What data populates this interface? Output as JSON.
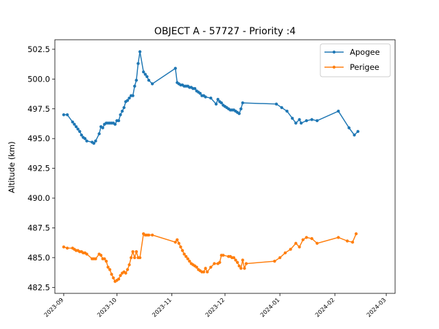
{
  "chart_data": {
    "type": "line",
    "title": "OBJECT A - 57727 - Priority :4",
    "xlabel": "",
    "ylabel": "Altitude (km)",
    "xlim": [
      "2023-08-27",
      "2024-03-06"
    ],
    "ylim": [
      482.0,
      503.3
    ],
    "grid": false,
    "legend_position": "top-right",
    "x_ticks": [
      "2023-09",
      "2023-10",
      "2023-11",
      "2023-12",
      "2024-01",
      "2024-02",
      "2024-03"
    ],
    "y_ticks": [
      "482.5",
      "485.0",
      "487.5",
      "490.0",
      "492.5",
      "495.0",
      "497.5",
      "500.0",
      "502.5"
    ],
    "series": [
      {
        "name": "Apogee",
        "color": "#1f77b4",
        "points": [
          [
            "2023-09-01",
            497.0
          ],
          [
            "2023-09-03",
            497.0
          ],
          [
            "2023-09-06",
            496.4
          ],
          [
            "2023-09-07",
            496.2
          ],
          [
            "2023-09-08",
            496.0
          ],
          [
            "2023-09-09",
            495.8
          ],
          [
            "2023-09-10",
            495.6
          ],
          [
            "2023-09-11",
            495.3
          ],
          [
            "2023-09-12",
            495.1
          ],
          [
            "2023-09-13",
            495.0
          ],
          [
            "2023-09-14",
            494.8
          ],
          [
            "2023-09-17",
            494.7
          ],
          [
            "2023-09-18",
            494.6
          ],
          [
            "2023-09-19",
            494.8
          ],
          [
            "2023-09-21",
            495.4
          ],
          [
            "2023-09-22",
            496.0
          ],
          [
            "2023-09-23",
            495.9
          ],
          [
            "2023-09-24",
            496.2
          ],
          [
            "2023-09-25",
            496.3
          ],
          [
            "2023-09-26",
            496.3
          ],
          [
            "2023-09-27",
            496.3
          ],
          [
            "2023-09-28",
            496.3
          ],
          [
            "2023-09-29",
            496.3
          ],
          [
            "2023-09-30",
            496.2
          ],
          [
            "2023-10-01",
            496.5
          ],
          [
            "2023-10-02",
            496.5
          ],
          [
            "2023-10-03",
            497.0
          ],
          [
            "2023-10-04",
            497.3
          ],
          [
            "2023-10-05",
            497.6
          ],
          [
            "2023-10-06",
            498.1
          ],
          [
            "2023-10-07",
            498.2
          ],
          [
            "2023-10-08",
            498.4
          ],
          [
            "2023-10-09",
            498.6
          ],
          [
            "2023-10-10",
            498.6
          ],
          [
            "2023-10-11",
            499.4
          ],
          [
            "2023-10-12",
            499.9
          ],
          [
            "2023-10-13",
            501.3
          ],
          [
            "2023-10-14",
            502.3
          ],
          [
            "2023-10-16",
            500.6
          ],
          [
            "2023-10-17",
            500.4
          ],
          [
            "2023-10-18",
            500.2
          ],
          [
            "2023-10-19",
            499.9
          ],
          [
            "2023-10-21",
            499.6
          ],
          [
            "2023-11-03",
            500.9
          ],
          [
            "2023-11-04",
            499.7
          ],
          [
            "2023-11-05",
            499.6
          ],
          [
            "2023-11-06",
            499.5
          ],
          [
            "2023-11-07",
            499.5
          ],
          [
            "2023-11-08",
            499.4
          ],
          [
            "2023-11-09",
            499.4
          ],
          [
            "2023-11-10",
            499.4
          ],
          [
            "2023-11-11",
            499.3
          ],
          [
            "2023-11-12",
            499.3
          ],
          [
            "2023-11-13",
            499.2
          ],
          [
            "2023-11-14",
            499.2
          ],
          [
            "2023-11-15",
            499.0
          ],
          [
            "2023-11-16",
            498.9
          ],
          [
            "2023-11-17",
            498.8
          ],
          [
            "2023-11-18",
            498.6
          ],
          [
            "2023-11-19",
            498.6
          ],
          [
            "2023-11-20",
            498.5
          ],
          [
            "2023-11-23",
            498.4
          ],
          [
            "2023-11-26",
            497.9
          ],
          [
            "2023-11-27",
            498.3
          ],
          [
            "2023-11-28",
            498.1
          ],
          [
            "2023-11-29",
            498.0
          ],
          [
            "2023-11-30",
            497.8
          ],
          [
            "2023-12-01",
            497.7
          ],
          [
            "2023-12-02",
            497.6
          ],
          [
            "2023-12-03",
            497.5
          ],
          [
            "2023-12-04",
            497.4
          ],
          [
            "2023-12-05",
            497.4
          ],
          [
            "2023-12-06",
            497.4
          ],
          [
            "2023-12-07",
            497.3
          ],
          [
            "2023-12-08",
            497.2
          ],
          [
            "2023-12-09",
            497.1
          ],
          [
            "2023-12-10",
            497.5
          ],
          [
            "2023-12-11",
            498.0
          ],
          [
            "2023-12-30",
            497.9
          ],
          [
            "2024-01-02",
            497.6
          ],
          [
            "2024-01-05",
            497.3
          ],
          [
            "2024-01-08",
            496.7
          ],
          [
            "2024-01-10",
            496.3
          ],
          [
            "2024-01-12",
            496.6
          ],
          [
            "2024-01-13",
            496.3
          ],
          [
            "2024-01-16",
            496.5
          ],
          [
            "2024-01-19",
            496.6
          ],
          [
            "2024-01-22",
            496.5
          ],
          [
            "2024-02-03",
            497.3
          ],
          [
            "2024-02-09",
            495.9
          ],
          [
            "2024-02-12",
            495.3
          ],
          [
            "2024-02-14",
            495.6
          ]
        ]
      },
      {
        "name": "Perigee",
        "color": "#ff7f0e",
        "points": [
          [
            "2023-09-01",
            485.9
          ],
          [
            "2023-09-03",
            485.8
          ],
          [
            "2023-09-06",
            485.8
          ],
          [
            "2023-09-07",
            485.7
          ],
          [
            "2023-09-08",
            485.6
          ],
          [
            "2023-09-09",
            485.6
          ],
          [
            "2023-09-10",
            485.5
          ],
          [
            "2023-09-11",
            485.5
          ],
          [
            "2023-09-12",
            485.4
          ],
          [
            "2023-09-13",
            485.4
          ],
          [
            "2023-09-14",
            485.3
          ],
          [
            "2023-09-17",
            484.9
          ],
          [
            "2023-09-18",
            484.9
          ],
          [
            "2023-09-19",
            484.9
          ],
          [
            "2023-09-21",
            485.3
          ],
          [
            "2023-09-22",
            485.2
          ],
          [
            "2023-09-23",
            484.9
          ],
          [
            "2023-09-24",
            484.9
          ],
          [
            "2023-09-25",
            484.7
          ],
          [
            "2023-09-26",
            484.2
          ],
          [
            "2023-09-27",
            484.0
          ],
          [
            "2023-09-28",
            483.6
          ],
          [
            "2023-09-29",
            483.3
          ],
          [
            "2023-09-30",
            483.0
          ],
          [
            "2023-10-01",
            483.1
          ],
          [
            "2023-10-02",
            483.2
          ],
          [
            "2023-10-03",
            483.5
          ],
          [
            "2023-10-04",
            483.7
          ],
          [
            "2023-10-05",
            483.8
          ],
          [
            "2023-10-06",
            483.7
          ],
          [
            "2023-10-07",
            484.0
          ],
          [
            "2023-10-08",
            484.4
          ],
          [
            "2023-10-09",
            485.0
          ],
          [
            "2023-10-10",
            485.5
          ],
          [
            "2023-10-11",
            485.0
          ],
          [
            "2023-10-12",
            485.5
          ],
          [
            "2023-10-13",
            485.0
          ],
          [
            "2023-10-14",
            485.0
          ],
          [
            "2023-10-16",
            487.0
          ],
          [
            "2023-10-17",
            486.9
          ],
          [
            "2023-10-18",
            486.9
          ],
          [
            "2023-10-19",
            486.9
          ],
          [
            "2023-10-21",
            486.9
          ],
          [
            "2023-11-03",
            486.3
          ],
          [
            "2023-11-04",
            486.5
          ],
          [
            "2023-11-05",
            486.2
          ],
          [
            "2023-11-06",
            485.9
          ],
          [
            "2023-11-07",
            485.6
          ],
          [
            "2023-11-08",
            485.3
          ],
          [
            "2023-11-09",
            485.1
          ],
          [
            "2023-11-10",
            484.9
          ],
          [
            "2023-11-11",
            484.7
          ],
          [
            "2023-11-12",
            484.5
          ],
          [
            "2023-11-13",
            484.4
          ],
          [
            "2023-11-14",
            484.3
          ],
          [
            "2023-11-15",
            484.2
          ],
          [
            "2023-11-16",
            484.0
          ],
          [
            "2023-11-17",
            483.9
          ],
          [
            "2023-11-18",
            483.8
          ],
          [
            "2023-11-19",
            483.8
          ],
          [
            "2023-11-20",
            484.1
          ],
          [
            "2023-11-21",
            483.8
          ],
          [
            "2023-11-23",
            484.2
          ],
          [
            "2023-11-25",
            484.5
          ],
          [
            "2023-11-27",
            484.5
          ],
          [
            "2023-11-28",
            484.6
          ],
          [
            "2023-11-29",
            485.2
          ],
          [
            "2023-11-30",
            485.2
          ],
          [
            "2023-12-03",
            485.1
          ],
          [
            "2023-12-04",
            485.1
          ],
          [
            "2023-12-05",
            485.0
          ],
          [
            "2023-12-06",
            485.0
          ],
          [
            "2023-12-07",
            484.8
          ],
          [
            "2023-12-08",
            484.6
          ],
          [
            "2023-12-09",
            484.3
          ],
          [
            "2023-12-10",
            484.1
          ],
          [
            "2023-12-11",
            484.8
          ],
          [
            "2023-12-12",
            484.1
          ],
          [
            "2023-12-13",
            484.5
          ],
          [
            "2023-12-29",
            484.7
          ],
          [
            "2024-01-01",
            485.0
          ],
          [
            "2024-01-04",
            485.4
          ],
          [
            "2024-01-07",
            485.7
          ],
          [
            "2024-01-10",
            486.2
          ],
          [
            "2024-01-12",
            485.9
          ],
          [
            "2024-01-14",
            486.5
          ],
          [
            "2024-01-16",
            486.7
          ],
          [
            "2024-01-19",
            486.6
          ],
          [
            "2024-01-22",
            486.2
          ],
          [
            "2024-02-03",
            486.7
          ],
          [
            "2024-02-08",
            486.4
          ],
          [
            "2024-02-11",
            486.3
          ],
          [
            "2024-02-13",
            487.0
          ]
        ]
      }
    ]
  }
}
